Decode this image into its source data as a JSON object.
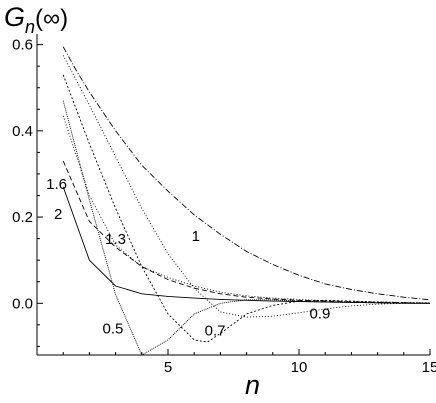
{
  "chart_data": {
    "type": "line",
    "title": "",
    "ylabel_main": "G",
    "ylabel_sub": "n",
    "ylabel_rest": "(∞)",
    "xlabel": "n",
    "xlim": [
      0,
      15
    ],
    "ylim": [
      -0.12,
      0.62
    ],
    "xticks": [
      5,
      10,
      15
    ],
    "yticks": [
      0.6,
      0.4,
      0.2,
      0.0
    ],
    "ytick_labels": [
      "0.6",
      "0.4",
      "0.2",
      "0.0"
    ],
    "grid": false,
    "series": [
      {
        "name": "1",
        "dash": "6,2,1,2",
        "label_at": [
          5.9,
          0.145
        ],
        "x": [
          1,
          1.5,
          2,
          3,
          4,
          5,
          6,
          7,
          8,
          9,
          10,
          11,
          12,
          13,
          14,
          15
        ],
        "y": [
          0.595,
          0.54,
          0.49,
          0.4,
          0.32,
          0.26,
          0.205,
          0.16,
          0.12,
          0.09,
          0.065,
          0.045,
          0.032,
          0.022,
          0.014,
          0.008
        ]
      },
      {
        "name": "0.9",
        "dash": "1,2",
        "label_at": [
          10.4,
          -0.035
        ],
        "x": [
          1,
          2,
          3,
          4,
          5,
          6,
          7,
          8,
          9,
          10,
          11,
          12,
          13,
          14,
          15
        ],
        "y": [
          0.575,
          0.46,
          0.34,
          0.22,
          0.115,
          0.035,
          -0.02,
          -0.032,
          -0.03,
          -0.022,
          -0.013,
          -0.006,
          -0.002,
          0.0,
          0.0
        ]
      },
      {
        "name": "0.7",
        "dash": "2,2",
        "label_at": [
          6.4,
          -0.075
        ],
        "x": [
          1,
          2,
          3,
          4,
          5,
          6,
          6.5,
          7,
          8,
          9,
          10,
          11,
          12,
          13,
          15
        ],
        "y": [
          0.53,
          0.37,
          0.22,
          0.085,
          -0.025,
          -0.085,
          -0.09,
          -0.07,
          -0.025,
          -0.005,
          0.005,
          0.007,
          0.005,
          0.003,
          0.0
        ]
      },
      {
        "name": "0.5",
        "dash": "1,1",
        "label_at": [
          2.5,
          -0.07
        ],
        "x": [
          1,
          2,
          3,
          4,
          5,
          6,
          7,
          8,
          9,
          10,
          11,
          13,
          15
        ],
        "y": [
          0.47,
          0.24,
          0.02,
          -0.12,
          -0.085,
          -0.025,
          0.0,
          0.008,
          0.008,
          0.005,
          0.003,
          0.001,
          0.0
        ]
      },
      {
        "name": "1.3",
        "dash": "1,2",
        "label_at": [
          2.6,
          0.138
        ],
        "x": [
          1,
          2,
          3,
          4,
          5,
          6,
          7,
          8,
          9,
          10,
          11,
          12,
          13,
          14,
          15
        ],
        "y": [
          0.435,
          0.25,
          0.135,
          0.085,
          0.06,
          0.04,
          0.026,
          0.017,
          0.012,
          0.009,
          0.006,
          0.004,
          0.003,
          0.002,
          0.001
        ]
      },
      {
        "name": "1.6",
        "dash": "5,3",
        "label_at": [
          0.35,
          0.265
        ],
        "x": [
          1,
          2,
          3,
          4,
          5,
          6,
          7,
          8,
          9,
          10,
          11,
          12,
          13,
          14,
          15
        ],
        "y": [
          0.33,
          0.19,
          0.13,
          0.085,
          0.055,
          0.035,
          0.022,
          0.014,
          0.01,
          0.007,
          0.005,
          0.003,
          0.002,
          0.001,
          0.0
        ]
      },
      {
        "name": "2",
        "dash": "",
        "label_at": [
          0.65,
          0.195
        ],
        "x": [
          1,
          2,
          3,
          4,
          5,
          6,
          7,
          8,
          9,
          10,
          11,
          12,
          13,
          14,
          15
        ],
        "y": [
          0.27,
          0.1,
          0.04,
          0.022,
          0.016,
          0.012,
          0.009,
          0.007,
          0.005,
          0.004,
          0.003,
          0.002,
          0.001,
          0.0,
          0.0
        ]
      }
    ]
  }
}
